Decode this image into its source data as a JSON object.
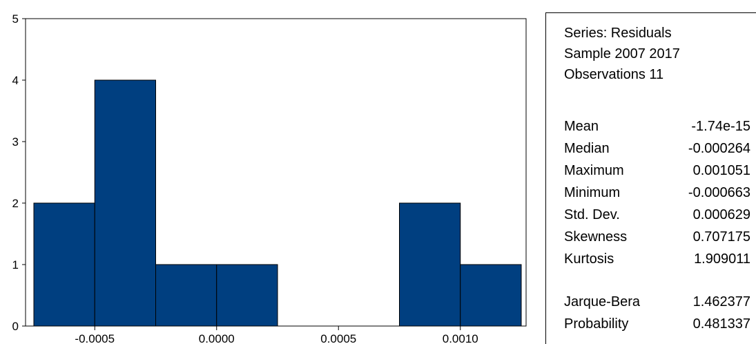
{
  "chart_data": {
    "type": "bar",
    "bins": [
      {
        "x0": -0.00075,
        "x1": -0.0005,
        "count": 2
      },
      {
        "x0": -0.0005,
        "x1": -0.00025,
        "count": 4
      },
      {
        "x0": -0.00025,
        "x1": 0.0,
        "count": 1
      },
      {
        "x0": 0.0,
        "x1": 0.00025,
        "count": 1
      },
      {
        "x0": 0.00025,
        "x1": 0.0005,
        "count": 0
      },
      {
        "x0": 0.0005,
        "x1": 0.00075,
        "count": 0
      },
      {
        "x0": 0.00075,
        "x1": 0.001,
        "count": 2
      },
      {
        "x0": 0.001,
        "x1": 0.00125,
        "count": 1
      }
    ],
    "xlim": [
      -0.00075,
      0.00125
    ],
    "ylim": [
      0,
      5
    ],
    "yticks": [
      "0",
      "1",
      "2",
      "3",
      "4",
      "5"
    ],
    "xticks": [
      {
        "value": -0.0005,
        "label": "-0.0005"
      },
      {
        "value": 0.0,
        "label": "0.0000"
      },
      {
        "value": 0.0005,
        "label": "0.0005"
      },
      {
        "value": 0.001,
        "label": "0.0010"
      }
    ],
    "bar_color": "#003f80",
    "grid": false
  },
  "stats": {
    "series": "Series: Residuals",
    "sample": "Sample 2007 2017",
    "observations": "Observations 11",
    "rows": [
      {
        "label": "Mean",
        "value": "-1.74e-15"
      },
      {
        "label": "Median",
        "value": "-0.000264"
      },
      {
        "label": "Maximum",
        "value": "0.001051"
      },
      {
        "label": "Minimum",
        "value": "-0.000663"
      },
      {
        "label": "Std. Dev.",
        "value": "0.000629"
      },
      {
        "label": "Skewness",
        "value": "0.707175"
      },
      {
        "label": "Kurtosis",
        "value": "1.909011"
      }
    ],
    "tests": [
      {
        "label": "Jarque-Bera",
        "value": "1.462377"
      },
      {
        "label": "Probability",
        "value": "0.481337"
      }
    ]
  }
}
